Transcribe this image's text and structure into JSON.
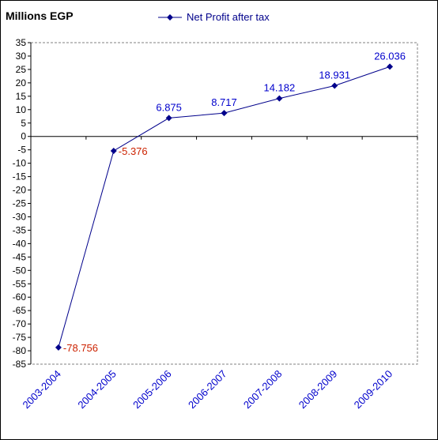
{
  "chart_data": {
    "type": "line",
    "title": "",
    "ylabel": "Millions EGP",
    "xlabel": "",
    "categories": [
      "2003-2004",
      "2004-2005",
      "2005-2006",
      "2006-2007",
      "2007-2008",
      "2008-2009",
      "2009-2010"
    ],
    "series": [
      {
        "name": "Net Profit after tax",
        "values": [
          -78.756,
          -5.376,
          6.875,
          8.717,
          14.182,
          18.931,
          26.036
        ],
        "labels": [
          "-78.756",
          "-5.376",
          "6.875",
          "8.717",
          "14.182",
          "18.931",
          "26.036"
        ]
      }
    ],
    "ylim": [
      -85,
      35
    ],
    "ytick_step": 5,
    "grid": false,
    "legend": "top",
    "colors": {
      "line": "#00008b",
      "positive_label": "#0000cc",
      "negative_label": "#cc2200",
      "category_label": "#0000cc"
    }
  }
}
